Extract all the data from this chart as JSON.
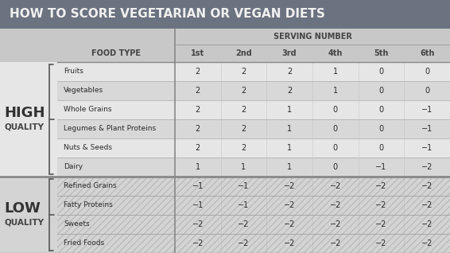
{
  "title": "HOW TO SCORE VEGETARIAN OR VEGAN DIETS",
  "title_bg": "#6b7280",
  "title_color": "#ffffff",
  "header_bg": "#c8c8c8",
  "high_bg": "#e2e2e2",
  "high_bg_alt": "#d8d8d8",
  "low_bg": "#d0d0d0",
  "serving_label": "SERVING NUMBER",
  "high_rows": [
    [
      "Fruits",
      "2",
      "2",
      "2",
      "1",
      "0",
      "0"
    ],
    [
      "Vegetables",
      "2",
      "2",
      "2",
      "1",
      "0",
      "0"
    ],
    [
      "Whole Grains",
      "2",
      "2",
      "1",
      "0",
      "0",
      "−1"
    ],
    [
      "Legumes & Plant Proteins",
      "2",
      "2",
      "1",
      "0",
      "0",
      "−1"
    ],
    [
      "Nuts & Seeds",
      "2",
      "2",
      "1",
      "0",
      "0",
      "−1"
    ],
    [
      "Dairy",
      "1",
      "1",
      "1",
      "0",
      "−1",
      "−2"
    ]
  ],
  "low_rows": [
    [
      "Refined Grains",
      "−1",
      "−1",
      "−2",
      "−2",
      "−2",
      "−2"
    ],
    [
      "Fatty Proteins",
      "−1",
      "−1",
      "−2",
      "−2",
      "−2",
      "−2"
    ],
    [
      "Sweets",
      "−2",
      "−2",
      "−2",
      "−2",
      "−2",
      "−2"
    ],
    [
      "Fried Foods",
      "−2",
      "−2",
      "−2",
      "−2",
      "−2",
      "−2"
    ]
  ]
}
